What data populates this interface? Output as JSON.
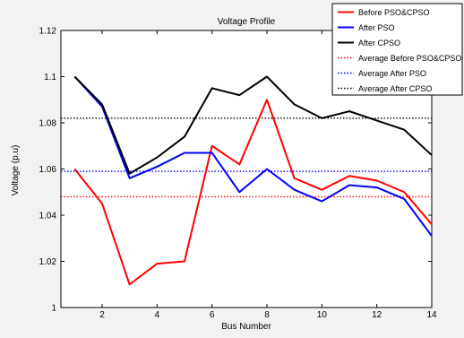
{
  "chart_data": {
    "type": "line",
    "title": "Voltage Profile",
    "xlabel": "Bus Number",
    "ylabel": "Voltage (p.u)",
    "xlim": [
      0.5,
      14
    ],
    "ylim": [
      1,
      1.12
    ],
    "xticks": [
      2,
      4,
      6,
      8,
      10,
      12,
      14
    ],
    "xtick_labels": [
      "2",
      "4",
      "6",
      "8",
      "10",
      "12",
      "14"
    ],
    "yticks": [
      1,
      1.02,
      1.04,
      1.06,
      1.08,
      1.1,
      1.12
    ],
    "ytick_labels": [
      "1",
      "1.02",
      "1.04",
      "1.06",
      "1.08",
      "1.1",
      "1.12"
    ],
    "grid": false,
    "legend_position": "top-right",
    "x": [
      1,
      2,
      3,
      4,
      5,
      6,
      7,
      8,
      9,
      10,
      11,
      12,
      13,
      14
    ],
    "series": [
      {
        "name": "Before PSO&CPSO",
        "color": "#ff0000",
        "style": "solid",
        "values": [
          1.06,
          1.045,
          1.01,
          1.019,
          1.02,
          1.07,
          1.062,
          1.09,
          1.056,
          1.051,
          1.057,
          1.055,
          1.05,
          1.036
        ]
      },
      {
        "name": "After PSO",
        "color": "#0000ff",
        "style": "solid",
        "values": [
          1.1,
          1.087,
          1.056,
          1.061,
          1.067,
          1.067,
          1.05,
          1.06,
          1.051,
          1.046,
          1.053,
          1.052,
          1.047,
          1.031
        ]
      },
      {
        "name": "After CPSO",
        "color": "#000000",
        "style": "solid",
        "values": [
          1.1,
          1.088,
          1.058,
          1.065,
          1.074,
          1.095,
          1.092,
          1.1,
          1.088,
          1.082,
          1.085,
          1.081,
          1.077,
          1.066
        ]
      },
      {
        "name": "Average Before PSO&CPSO",
        "color": "#ff0000",
        "style": "dotted",
        "constant": 1.048
      },
      {
        "name": "Average After PSO",
        "color": "#0000ff",
        "style": "dotted",
        "constant": 1.059
      },
      {
        "name": "Average After CPSO",
        "color": "#000000",
        "style": "dotted",
        "constant": 1.082
      }
    ]
  }
}
